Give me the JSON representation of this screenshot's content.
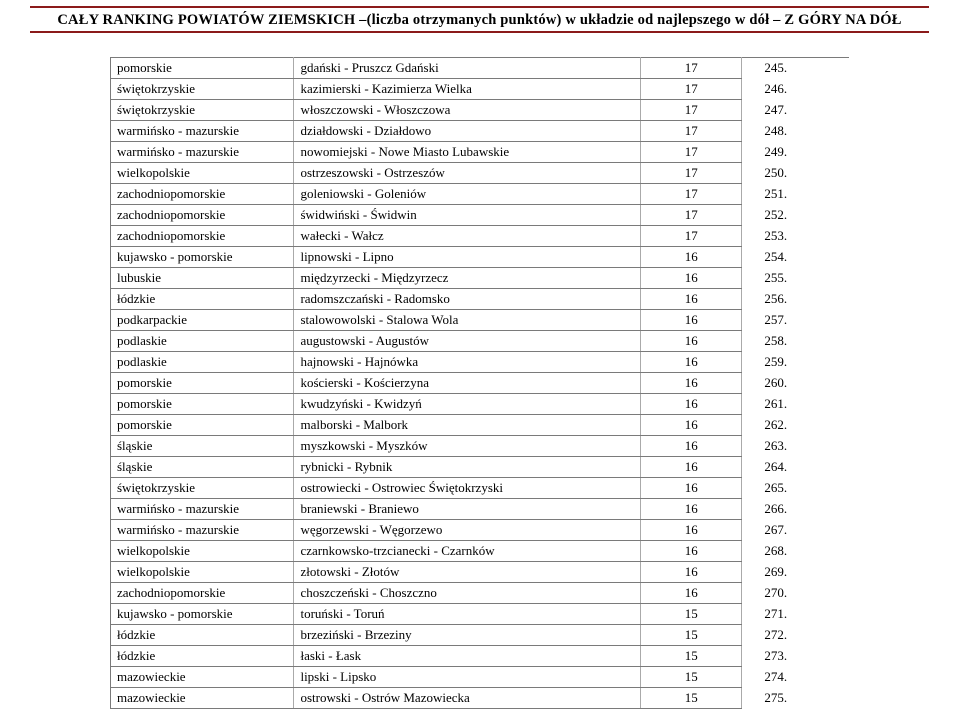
{
  "header": {
    "title": "CAŁY RANKING POWIATÓW ZIEMSKICH –(liczba otrzymanych punktów) w układzie od najlepszego w dół – Z GÓRY NA DÓŁ"
  },
  "table": {
    "rows": [
      {
        "region": "pomorskie",
        "district": "gdański - Pruszcz Gdański",
        "points": "17",
        "rank": "245."
      },
      {
        "region": "świętokrzyskie",
        "district": "kazimierski - Kazimierza Wielka",
        "points": "17",
        "rank": "246."
      },
      {
        "region": "świętokrzyskie",
        "district": "włoszczowski - Włoszczowa",
        "points": "17",
        "rank": "247."
      },
      {
        "region": "warmińsko - mazurskie",
        "district": "działdowski - Działdowo",
        "points": "17",
        "rank": "248."
      },
      {
        "region": "warmińsko - mazurskie",
        "district": "nowomiejski - Nowe Miasto Lubawskie",
        "points": "17",
        "rank": "249."
      },
      {
        "region": "wielkopolskie",
        "district": "ostrzeszowski - Ostrzeszów",
        "points": "17",
        "rank": "250."
      },
      {
        "region": "zachodniopomorskie",
        "district": "goleniowski - Goleniów",
        "points": "17",
        "rank": "251."
      },
      {
        "region": "zachodniopomorskie",
        "district": "świdwiński - Świdwin",
        "points": "17",
        "rank": "252."
      },
      {
        "region": "zachodniopomorskie",
        "district": "wałecki - Wałcz",
        "points": "17",
        "rank": "253."
      },
      {
        "region": "kujawsko - pomorskie",
        "district": "lipnowski - Lipno",
        "points": "16",
        "rank": "254."
      },
      {
        "region": "lubuskie",
        "district": "międzyrzecki - Międzyrzecz",
        "points": "16",
        "rank": "255."
      },
      {
        "region": "łódzkie",
        "district": "radomszczański - Radomsko",
        "points": "16",
        "rank": "256."
      },
      {
        "region": "podkarpackie",
        "district": "stalowowolski - Stalowa Wola",
        "points": "16",
        "rank": "257."
      },
      {
        "region": "podlaskie",
        "district": "augustowski - Augustów",
        "points": "16",
        "rank": "258."
      },
      {
        "region": "podlaskie",
        "district": "hajnowski - Hajnówka",
        "points": "16",
        "rank": "259."
      },
      {
        "region": "pomorskie",
        "district": "kościerski - Kościerzyna",
        "points": "16",
        "rank": "260."
      },
      {
        "region": "pomorskie",
        "district": "kwudzyński - Kwidzyń",
        "points": "16",
        "rank": "261."
      },
      {
        "region": "pomorskie",
        "district": "malborski - Malbork",
        "points": "16",
        "rank": "262."
      },
      {
        "region": "śląskie",
        "district": "myszkowski - Myszków",
        "points": "16",
        "rank": "263."
      },
      {
        "region": "śląskie",
        "district": "rybnicki - Rybnik",
        "points": "16",
        "rank": "264."
      },
      {
        "region": "świętokrzyskie",
        "district": "ostrowiecki - Ostrowiec Świętokrzyski",
        "points": "16",
        "rank": "265."
      },
      {
        "region": "warmińsko - mazurskie",
        "district": "braniewski - Braniewo",
        "points": "16",
        "rank": "266."
      },
      {
        "region": "warmińsko - mazurskie",
        "district": "węgorzewski - Węgorzewo",
        "points": "16",
        "rank": "267."
      },
      {
        "region": "wielkopolskie",
        "district": "czarnkowsko-trzcianecki - Czarnków",
        "points": "16",
        "rank": "268."
      },
      {
        "region": "wielkopolskie",
        "district": "złotowski - Złotów",
        "points": "16",
        "rank": "269."
      },
      {
        "region": "zachodniopomorskie",
        "district": "choszczeński - Choszczno",
        "points": "16",
        "rank": "270."
      },
      {
        "region": "kujawsko - pomorskie",
        "district": "toruński - Toruń",
        "points": "15",
        "rank": "271."
      },
      {
        "region": "łódzkie",
        "district": "brzeziński - Brzeziny",
        "points": "15",
        "rank": "272."
      },
      {
        "region": "łódzkie",
        "district": "łaski - Łask",
        "points": "15",
        "rank": "273."
      },
      {
        "region": "mazowieckie",
        "district": "lipski - Lipsko",
        "points": "15",
        "rank": "274."
      },
      {
        "region": "mazowieckie",
        "district": "ostrowski - Ostrów Mazowiecka",
        "points": "15",
        "rank": "275."
      }
    ]
  },
  "style": {
    "header_rule_color": "#8b1a1a",
    "border_color": "#7a7a7a",
    "font_family": "Times New Roman",
    "title_fontsize_pt": 11,
    "body_fontsize_pt": 10
  }
}
